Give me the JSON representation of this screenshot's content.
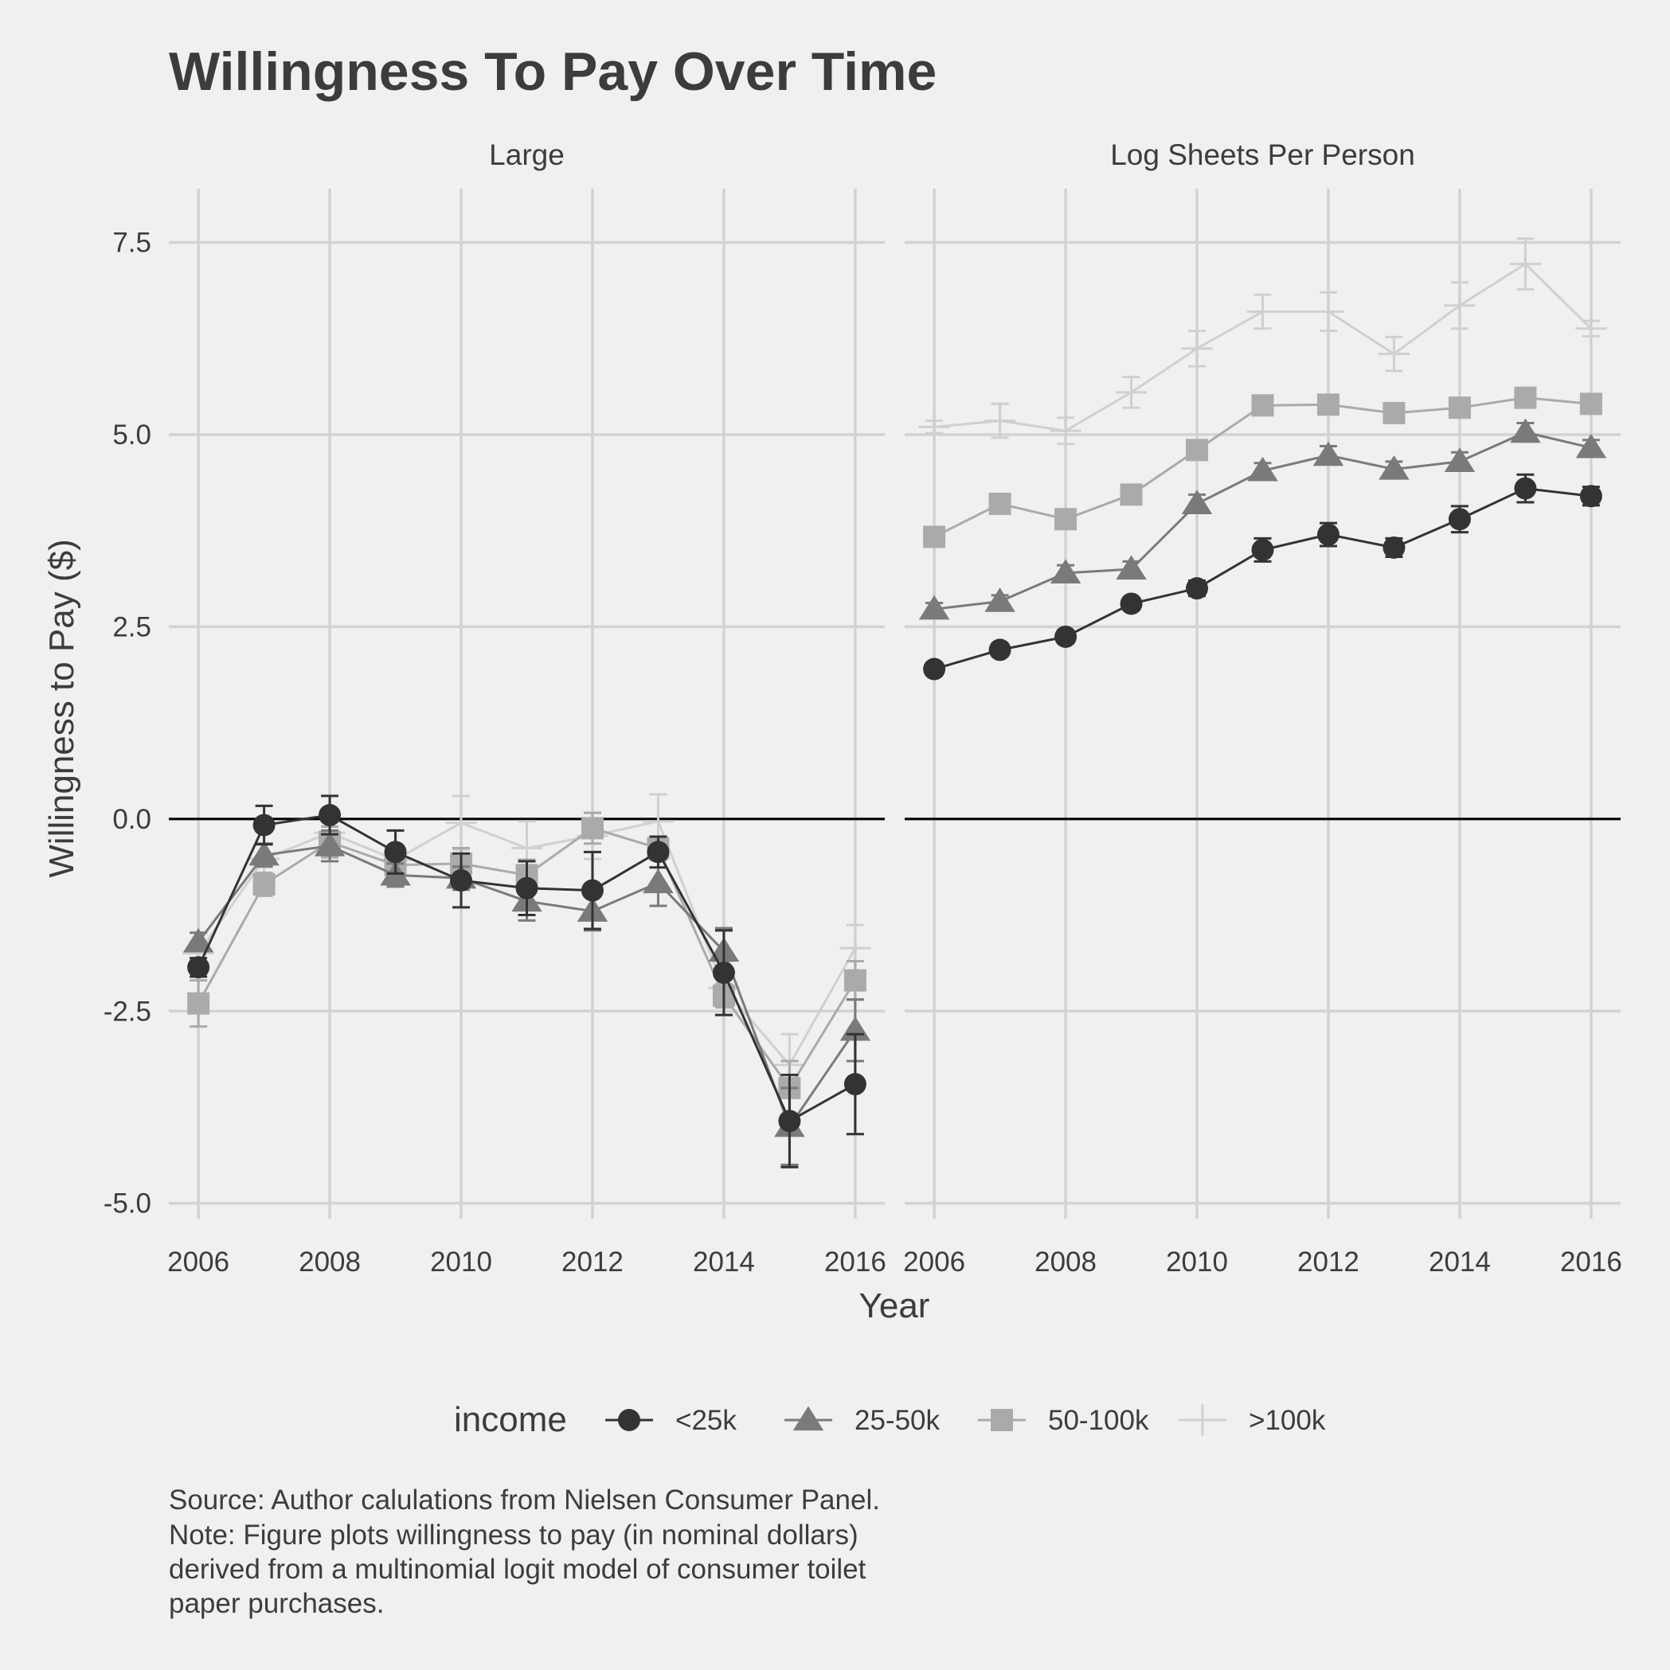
{
  "chart_data": {
    "type": "line",
    "title": "Willingness To Pay Over Time",
    "xlabel": "Year",
    "ylabel": "Willingness to Pay ($)",
    "ylim": [
      -5.2,
      8.2
    ],
    "xlim": [
      2005.55,
      2016.45
    ],
    "x_ticks": [
      2006,
      2008,
      2010,
      2012,
      2014,
      2016
    ],
    "x_tick_labels": [
      "2006",
      "2008",
      "2010",
      "2012",
      "2014",
      "2016"
    ],
    "y_ticks": [
      -5,
      -2.5,
      0,
      2.5,
      5,
      7.5
    ],
    "y_tick_labels": [
      "-5.0",
      "-2.5",
      "0.0",
      "2.5",
      "5.0",
      "7.5"
    ],
    "hline": 0,
    "grid": true,
    "legend": {
      "title": "income",
      "position": "bottom"
    },
    "series_styles": [
      {
        "name": "<25k",
        "color": "#333333",
        "shape": "circle"
      },
      {
        "name": "25-50k",
        "color": "#7a7a7a",
        "shape": "triangle"
      },
      {
        "name": "50-100k",
        "color": "#aaaaaa",
        "shape": "square"
      },
      {
        "name": ">100k",
        "color": "#d0d0d0",
        "shape": "cross"
      }
    ],
    "x": [
      2006,
      2007,
      2008,
      2009,
      2010,
      2011,
      2012,
      2013,
      2014,
      2015,
      2016
    ],
    "panels": [
      {
        "strip": "Large",
        "series": [
          {
            "name": "<25k",
            "values": [
              -1.93,
              -0.08,
              0.05,
              -0.43,
              -0.8,
              -0.9,
              -0.93,
              -0.43,
              -2.0,
              -3.93,
              -3.45
            ],
            "err": [
              0.12,
              0.25,
              0.25,
              0.28,
              0.35,
              0.35,
              0.5,
              0.2,
              0.55,
              0.6,
              0.65
            ]
          },
          {
            "name": "25-50k",
            "values": [
              -1.6,
              -0.47,
              -0.35,
              -0.73,
              -0.77,
              -1.07,
              -1.2,
              -0.83,
              -1.72,
              -4.0,
              -2.75
            ],
            "err": [
              0.12,
              0.15,
              0.2,
              0.15,
              0.15,
              0.25,
              0.25,
              0.3,
              0.3,
              0.5,
              0.4
            ]
          },
          {
            "name": "50-100k",
            "values": [
              -2.4,
              -0.85,
              -0.3,
              -0.6,
              -0.58,
              -0.73,
              -0.12,
              -0.38,
              -2.3,
              -3.5,
              -2.1
            ],
            "err": [
              0.3,
              0.15,
              0.2,
              0.15,
              0.2,
              0.2,
              0.2,
              0.15,
              0.15,
              0.35,
              0.25
            ]
          },
          {
            "name": ">100k",
            "values": [
              -1.75,
              -0.52,
              -0.18,
              -0.53,
              -0.05,
              -0.38,
              -0.22,
              -0.03,
              -2.2,
              -3.2,
              -1.68
            ],
            "err": [
              0.15,
              0.2,
              0.2,
              0.15,
              0.35,
              0.35,
              0.3,
              0.35,
              0.35,
              0.4,
              0.3
            ]
          }
        ]
      },
      {
        "strip": "Log Sheets Per Person",
        "series": [
          {
            "name": "<25k",
            "values": [
              1.95,
              2.2,
              2.37,
              2.8,
              3.0,
              3.5,
              3.7,
              3.53,
              3.9,
              4.3,
              4.2
            ],
            "err": [
              0.08,
              0.08,
              0.08,
              0.08,
              0.1,
              0.15,
              0.15,
              0.12,
              0.17,
              0.18,
              0.12
            ]
          },
          {
            "name": "25-50k",
            "values": [
              2.73,
              2.83,
              3.2,
              3.25,
              4.1,
              4.53,
              4.73,
              4.55,
              4.65,
              5.03,
              4.83
            ],
            "err": [
              0.08,
              0.08,
              0.1,
              0.1,
              0.12,
              0.1,
              0.12,
              0.1,
              0.12,
              0.12,
              0.1
            ]
          },
          {
            "name": "50-100k",
            "values": [
              3.67,
              4.1,
              3.9,
              4.22,
              4.8,
              5.38,
              5.39,
              5.28,
              5.35,
              5.48,
              5.4
            ],
            "err": [
              0.08,
              0.08,
              0.1,
              0.1,
              0.1,
              0.1,
              0.12,
              0.1,
              0.12,
              0.12,
              0.1
            ]
          },
          {
            "name": ">100k",
            "values": [
              5.1,
              5.18,
              5.05,
              5.55,
              6.12,
              6.6,
              6.6,
              6.05,
              6.68,
              7.22,
              6.38
            ],
            "err": [
              0.08,
              0.22,
              0.17,
              0.2,
              0.23,
              0.22,
              0.25,
              0.22,
              0.3,
              0.33,
              0.1
            ]
          }
        ]
      }
    ],
    "caption": [
      "Source: Author calulations from Nielsen Consumer Panel.",
      "Note: Figure plots willingness to pay (in nominal dollars)",
      "derived from a multinomial logit model of consumer toilet",
      "paper purchases."
    ]
  }
}
